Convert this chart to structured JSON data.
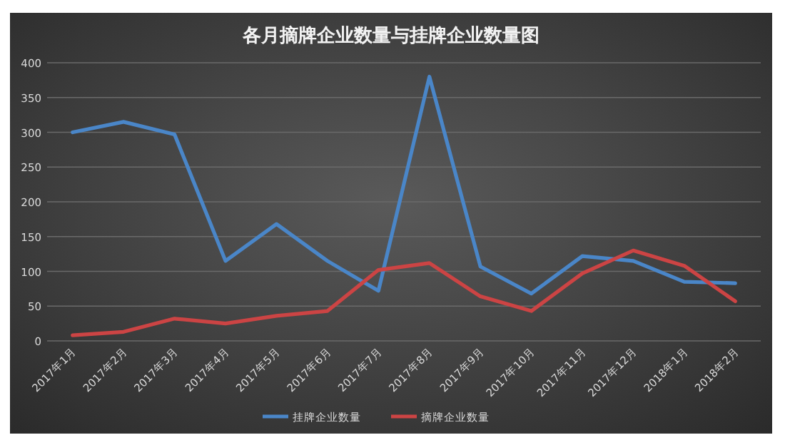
{
  "chart_data": {
    "type": "line",
    "title": "各月摘牌企业数量与挂牌企业数量图",
    "categories": [
      "2017年1月",
      "2017年2月",
      "2017年3月",
      "2017年4月",
      "2017年5月",
      "2017年6月",
      "2017年7月",
      "2017年8月",
      "2017年9月",
      "2017年10月",
      "2017年11月",
      "2017年12月",
      "2018年1月",
      "2018年2月"
    ],
    "series": [
      {
        "name": "挂牌企业数量",
        "color": "#4a86c8",
        "values": [
          300,
          315,
          297,
          115,
          168,
          115,
          72,
          380,
          107,
          68,
          122,
          115,
          85,
          83
        ]
      },
      {
        "name": "摘牌企业数量",
        "color": "#cc4444",
        "values": [
          8,
          13,
          32,
          25,
          36,
          43,
          102,
          112,
          64,
          43,
          97,
          130,
          108,
          57
        ]
      }
    ],
    "ylim": [
      0,
      400
    ],
    "yticks": [
      0,
      50,
      100,
      150,
      200,
      250,
      300,
      350,
      400
    ],
    "grid": "y",
    "legend": "bottom",
    "marker": "none",
    "line_style": "solid"
  }
}
